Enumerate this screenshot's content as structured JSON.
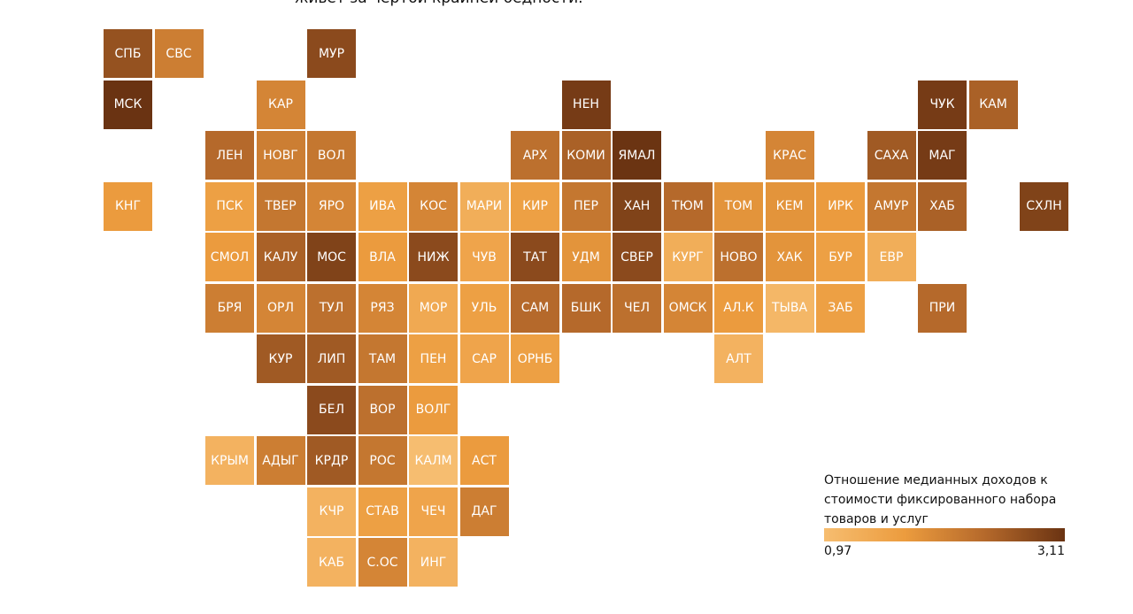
{
  "title": "живет за чертой крайней бедности.",
  "map": {
    "rows": [
      [
        {
          "label": "СПБ",
          "value": 2.7
        },
        {
          "label": "СВС",
          "value": 2.1
        },
        null,
        null,
        {
          "label": "МУР",
          "value": 2.8
        }
      ],
      [
        {
          "label": "МСК",
          "value": 3.11
        },
        null,
        null,
        {
          "label": "КАР",
          "value": 2.0
        },
        null,
        null,
        null,
        null,
        null,
        {
          "label": "НЕН",
          "value": 3.0
        },
        null,
        null,
        null,
        null,
        null,
        null,
        {
          "label": "ЧУК",
          "value": 3.0
        },
        {
          "label": "КАМ",
          "value": 2.5
        }
      ],
      [
        null,
        null,
        {
          "label": "ЛЕН",
          "value": 2.4
        },
        {
          "label": "НОВГ",
          "value": 2.1
        },
        {
          "label": "ВОЛ",
          "value": 2.2
        },
        null,
        null,
        null,
        {
          "label": "АРХ",
          "value": 2.3
        },
        {
          "label": "КОМИ",
          "value": 2.5
        },
        {
          "label": "ЯМАЛ",
          "value": 3.1
        },
        null,
        null,
        {
          "label": "КРАС",
          "value": 2.0
        },
        null,
        {
          "label": "САХА",
          "value": 2.6
        },
        {
          "label": "МАГ",
          "value": 3.0
        }
      ],
      [
        {
          "label": "КНГ",
          "value": 1.7
        },
        null,
        {
          "label": "ПСК",
          "value": 1.6
        },
        {
          "label": "ТВЕР",
          "value": 2.2
        },
        {
          "label": "ЯРО",
          "value": 2.0
        },
        {
          "label": "ИВА",
          "value": 1.6
        },
        {
          "label": "КОС",
          "value": 2.0
        },
        {
          "label": "МАРИ",
          "value": 1.3
        },
        {
          "label": "КИР",
          "value": 1.6
        },
        {
          "label": "ПЕР",
          "value": 2.2
        },
        {
          "label": "ХАН",
          "value": 2.9
        },
        {
          "label": "ТЮМ",
          "value": 2.4
        },
        {
          "label": "ТОМ",
          "value": 1.8
        },
        {
          "label": "КЕМ",
          "value": 1.8
        },
        {
          "label": "ИРК",
          "value": 1.7
        },
        {
          "label": "АМУР",
          "value": 2.2
        },
        {
          "label": "ХАБ",
          "value": 2.5
        },
        null,
        {
          "label": "СХЛН",
          "value": 2.9
        }
      ],
      [
        null,
        null,
        {
          "label": "СМОЛ",
          "value": 1.7
        },
        {
          "label": "КАЛУ",
          "value": 2.5
        },
        {
          "label": "МОС",
          "value": 2.9
        },
        {
          "label": "ВЛА",
          "value": 1.7
        },
        {
          "label": "НИЖ",
          "value": 2.8
        },
        {
          "label": "ЧУВ",
          "value": 1.5
        },
        {
          "label": "ТАТ",
          "value": 2.8
        },
        {
          "label": "УДМ",
          "value": 1.8
        },
        {
          "label": "СВЕР",
          "value": 2.8
        },
        {
          "label": "КУРГ",
          "value": 1.3
        },
        {
          "label": "НОВО",
          "value": 2.3
        },
        {
          "label": "ХАК",
          "value": 1.8
        },
        {
          "label": "БУР",
          "value": 1.6
        },
        {
          "label": "ЕВР",
          "value": 1.3
        }
      ],
      [
        null,
        null,
        {
          "label": "БРЯ",
          "value": 2.1
        },
        {
          "label": "ОРЛ",
          "value": 2.0
        },
        {
          "label": "ТУЛ",
          "value": 2.3
        },
        {
          "label": "РЯЗ",
          "value": 2.0
        },
        {
          "label": "МОР",
          "value": 1.4
        },
        {
          "label": "УЛЬ",
          "value": 1.6
        },
        {
          "label": "САМ",
          "value": 2.4
        },
        {
          "label": "БШК",
          "value": 2.4
        },
        {
          "label": "ЧЕЛ",
          "value": 2.3
        },
        {
          "label": "ОМСК",
          "value": 2.0
        },
        {
          "label": "АЛ.К",
          "value": 1.7
        },
        {
          "label": "ТЫВА",
          "value": 1.1
        },
        {
          "label": "ЗАБ",
          "value": 1.6
        },
        null,
        {
          "label": "ПРИ",
          "value": 2.4
        }
      ],
      [
        null,
        null,
        null,
        {
          "label": "КУР",
          "value": 2.6
        },
        {
          "label": "ЛИП",
          "value": 2.6
        },
        {
          "label": "ТАМ",
          "value": 2.2
        },
        {
          "label": "ПЕН",
          "value": 1.6
        },
        {
          "label": "САР",
          "value": 1.5
        },
        {
          "label": "ОРНБ",
          "value": 1.6
        },
        null,
        null,
        null,
        {
          "label": "АЛТ",
          "value": 1.2
        }
      ],
      [
        null,
        null,
        null,
        null,
        {
          "label": "БЕЛ",
          "value": 2.8
        },
        {
          "label": "ВОР",
          "value": 2.3
        },
        {
          "label": "ВОЛГ",
          "value": 1.7
        }
      ],
      [
        null,
        null,
        {
          "label": "КРЫМ",
          "value": 1.2
        },
        {
          "label": "АДЫГ",
          "value": 2.1
        },
        {
          "label": "КРДР",
          "value": 2.6
        },
        {
          "label": "РОС",
          "value": 2.2
        },
        {
          "label": "КАЛМ",
          "value": 0.97
        },
        {
          "label": "АСТ",
          "value": 1.7
        }
      ],
      [
        null,
        null,
        null,
        null,
        {
          "label": "КЧР",
          "value": 1.2
        },
        {
          "label": "СТАВ",
          "value": 1.6
        },
        {
          "label": "ЧЕЧ",
          "value": 1.5
        },
        {
          "label": "ДАГ",
          "value": 2.1
        }
      ],
      [
        null,
        null,
        null,
        null,
        {
          "label": "КАБ",
          "value": 1.2
        },
        {
          "label": "С.ОС",
          "value": 2.0
        },
        {
          "label": "ИНГ",
          "value": 1.2
        }
      ]
    ]
  },
  "legend": {
    "title": "Отношение медианных доходов к стоимости фиксированного набора товаров и услуг",
    "min": {
      "value": 0.97,
      "label": "0,97"
    },
    "max": {
      "value": 3.11,
      "label": "3,11"
    },
    "colors": [
      "#f6bd70",
      "#ec9c3e",
      "#b5692b",
      "#6a3312"
    ]
  }
}
